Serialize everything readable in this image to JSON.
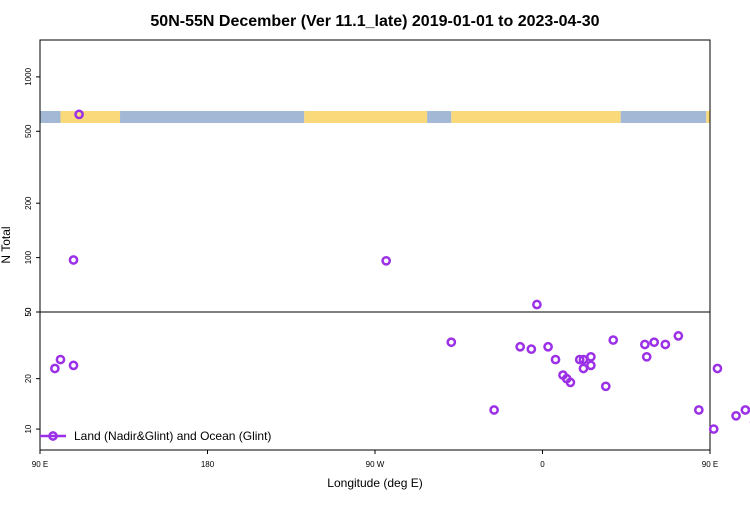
{
  "chart_data": {
    "type": "scatter",
    "title": "50N-55N December (Ver 11.1_late)   2019-01-01 to 2023-04-30",
    "xlabel": "Longitude (deg E)",
    "ylabel": "N Total",
    "xlim": [
      90,
      450
    ],
    "x_ticks": [
      {
        "value": 90,
        "label": "90 E"
      },
      {
        "value": 180,
        "label": "180"
      },
      {
        "value": 270,
        "label": "90 W"
      },
      {
        "value": 360,
        "label": "0"
      },
      {
        "value": 450,
        "label": "90 E"
      },
      {
        "value": 540,
        "label": "180"
      }
    ],
    "y_panels": [
      {
        "name": "upper",
        "scale": "log",
        "ylim": [
          50,
          1600
        ],
        "ticks": [
          50,
          100,
          200,
          500,
          1000
        ]
      },
      {
        "name": "lower",
        "scale": "log",
        "ylim": [
          7.5,
          50
        ],
        "ticks": [
          10,
          20,
          50
        ]
      }
    ],
    "land_ocean_band": {
      "level": 600,
      "colors": {
        "land": "#fad97a",
        "ocean": "#a3b8d5"
      },
      "segments": [
        {
          "type": "ocean",
          "from": 90,
          "to": 101
        },
        {
          "type": "land",
          "from": 101,
          "to": 133
        },
        {
          "type": "ocean",
          "from": 133,
          "to": 232
        },
        {
          "type": "land",
          "from": 232,
          "to": 298
        },
        {
          "type": "ocean",
          "from": 298,
          "to": 311
        },
        {
          "type": "land",
          "from": 311,
          "to": 402
        },
        {
          "type": "ocean",
          "from": 402,
          "to": 448
        },
        {
          "type": "land",
          "from": 448,
          "to": 511
        },
        {
          "type": "ocean",
          "from": 511,
          "to": 540
        }
      ]
    },
    "series": [
      {
        "name": "Land (Nadir&Glint) and Ocean (Glint)",
        "color": "#9b30e6",
        "x": [
          111,
          108,
          357,
          433,
          420,
          367,
          382,
          348,
          398,
          454,
          311,
          276,
          426,
          452,
          371,
          373,
          375,
          386,
          382,
          394,
          363,
          354,
          334,
          101,
          98,
          386,
          415,
          469,
          474,
          464,
          416,
          479,
          444,
          108,
          380,
          476
        ],
        "y": [
          620,
          97,
          55,
          36,
          33,
          26,
          26,
          31,
          34,
          23,
          33,
          96,
          32,
          10,
          21,
          20,
          19,
          24,
          23,
          18,
          31,
          30,
          13,
          26,
          23,
          27,
          32,
          13,
          11,
          12,
          27,
          12,
          13,
          24,
          26,
          14
        ]
      }
    ],
    "legend": {
      "position": "bottom-left",
      "label": "Land (Nadir&Glint) and Ocean (Glint)"
    }
  }
}
